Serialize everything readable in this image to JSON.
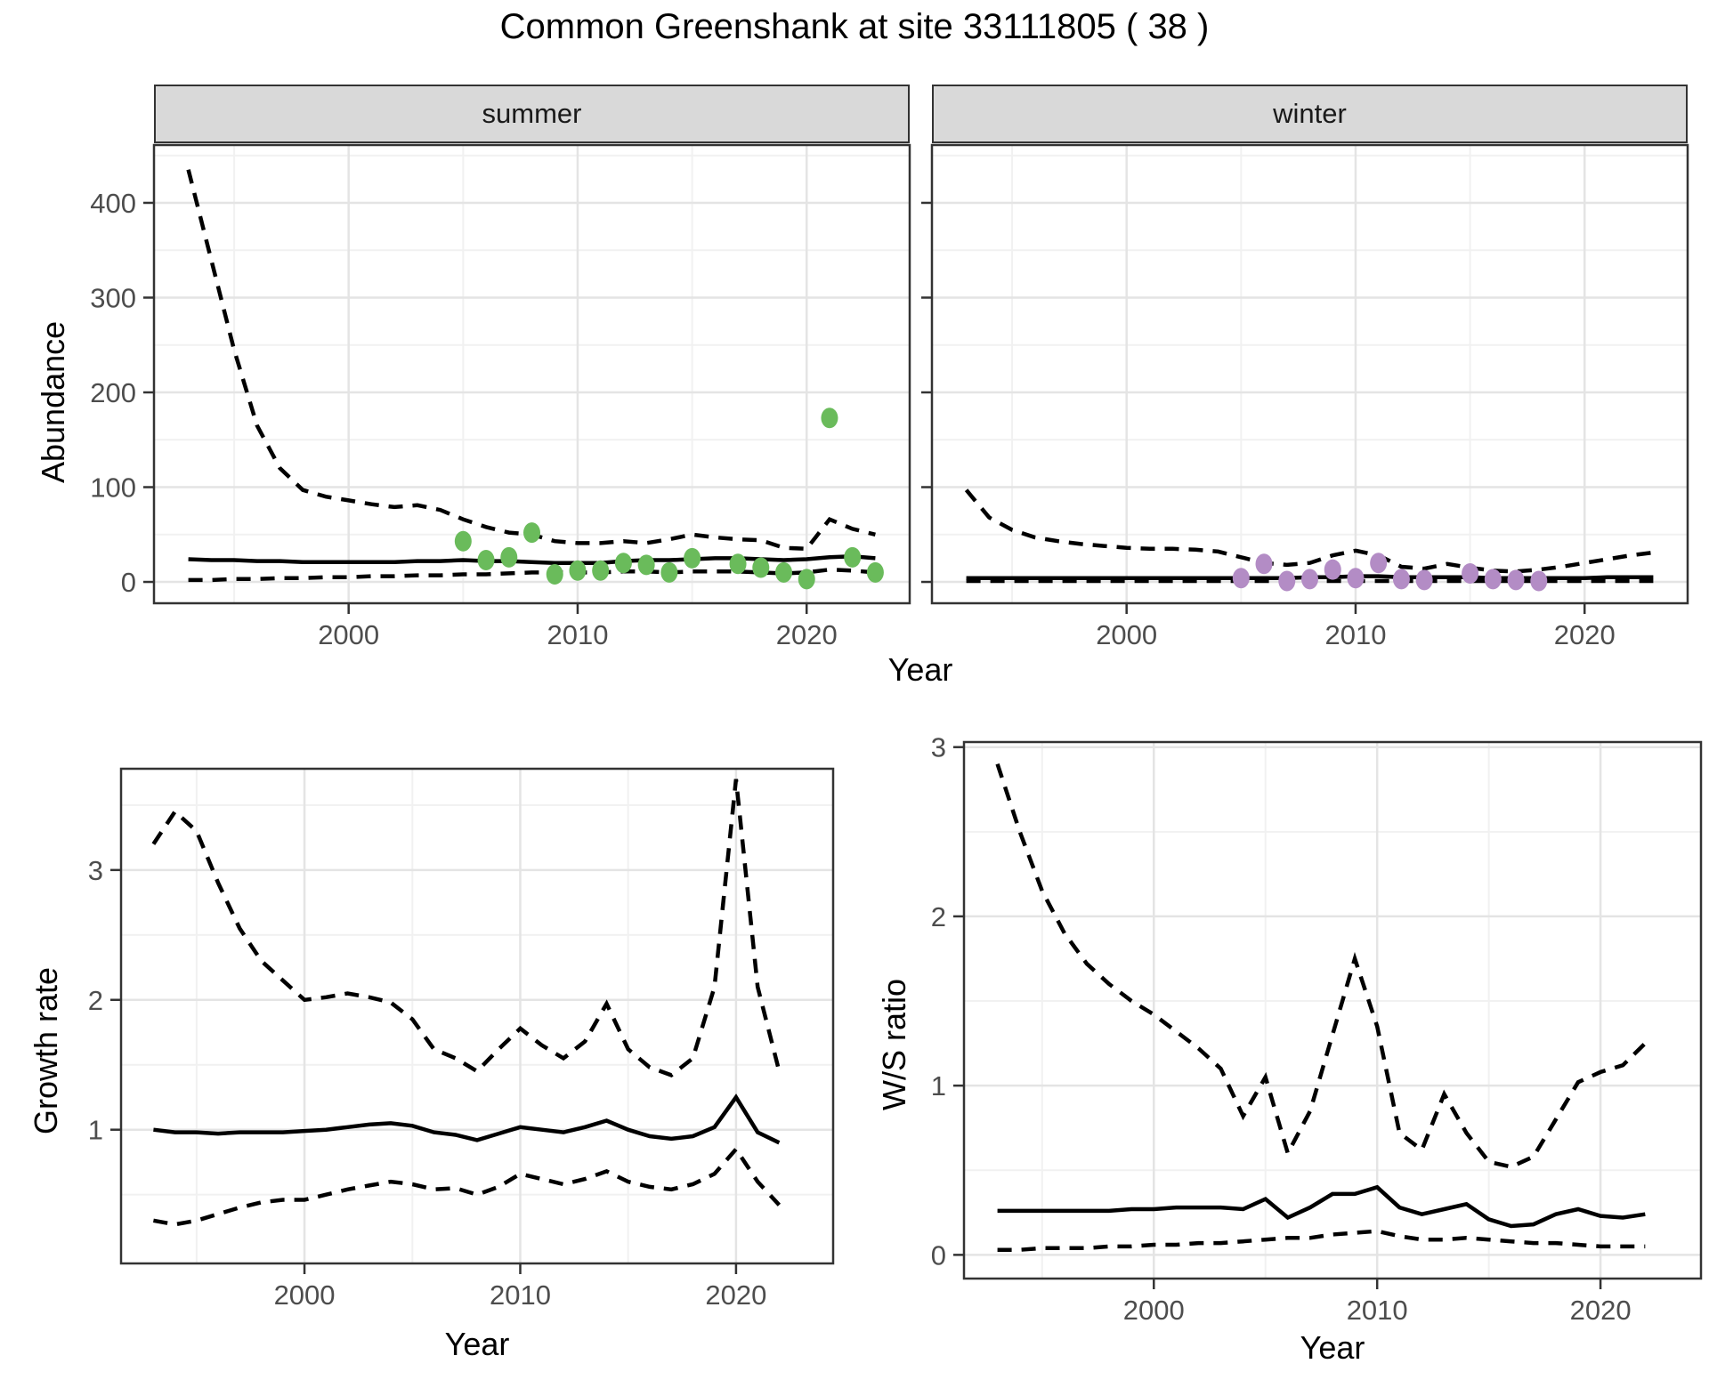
{
  "figure": {
    "title": "Common Greenshank at site 33111805 ( 38 )",
    "background": "#FFFFFF",
    "grid_major_color": "#E4E4E4",
    "grid_minor_color": "#F1F1F1",
    "panel_border_color": "#333333",
    "tick_label_color": "#4D4D4D",
    "strip_fill": "#D9D9D9",
    "line_color": "#000000"
  },
  "chart_data": [
    {
      "type": "line",
      "id": "abundance-summer",
      "facet_label": "summer",
      "ylabel": "Abundance",
      "xlabel": "Year",
      "xlim": [
        1991.5,
        2024.5
      ],
      "ylim": [
        -22.5,
        461
      ],
      "xticks": [
        2000,
        2010,
        2020
      ],
      "xticks_minor": [
        1995,
        2005,
        2015
      ],
      "yticks": [
        0,
        100,
        200,
        300,
        400
      ],
      "yticks_minor": [
        50,
        150,
        250,
        350,
        450
      ],
      "show_ylabels": true,
      "point_color": "#6ABB5B",
      "x": [
        1993,
        1994,
        1995,
        1996,
        1997,
        1998,
        1999,
        2000,
        2001,
        2002,
        2003,
        2004,
        2005,
        2006,
        2007,
        2008,
        2009,
        2010,
        2011,
        2012,
        2013,
        2014,
        2015,
        2016,
        2017,
        2018,
        2019,
        2020,
        2021,
        2022,
        2023
      ],
      "series": [
        {
          "name": "median",
          "style": "solid",
          "values": [
            24,
            23,
            23,
            22,
            22,
            21,
            21,
            21,
            21,
            21,
            22,
            22,
            23,
            22,
            22,
            21,
            20,
            20,
            20,
            22,
            23,
            23,
            24,
            25,
            25,
            24,
            23,
            24,
            26,
            27,
            25
          ]
        },
        {
          "name": "upper95",
          "style": "dashed",
          "values": [
            435,
            340,
            245,
            165,
            120,
            97,
            90,
            86,
            82,
            79,
            81,
            76,
            66,
            58,
            52,
            50,
            43,
            41,
            41,
            43,
            41,
            45,
            50,
            47,
            45,
            44,
            36,
            35,
            66,
            56,
            50
          ]
        },
        {
          "name": "lower95",
          "style": "dashed",
          "values": [
            2,
            2,
            3,
            3,
            4,
            4,
            5,
            5,
            6,
            6,
            7,
            7,
            8,
            8,
            9,
            10,
            10,
            10,
            10,
            11,
            11,
            10,
            11,
            11,
            11,
            10,
            9,
            10,
            13,
            12,
            10
          ]
        }
      ],
      "points": [
        [
          2005,
          43
        ],
        [
          2006,
          23
        ],
        [
          2007,
          26
        ],
        [
          2008,
          52
        ],
        [
          2009,
          8
        ],
        [
          2010,
          12
        ],
        [
          2011,
          12
        ],
        [
          2012,
          20
        ],
        [
          2013,
          18
        ],
        [
          2014,
          10
        ],
        [
          2015,
          25
        ],
        [
          2017,
          19
        ],
        [
          2018,
          15
        ],
        [
          2019,
          10
        ],
        [
          2020,
          3
        ],
        [
          2021,
          173
        ],
        [
          2022,
          26
        ],
        [
          2023,
          10
        ]
      ]
    },
    {
      "type": "line",
      "id": "abundance-winter",
      "facet_label": "winter",
      "ylabel": "Abundance",
      "xlabel": "Year",
      "xlim": [
        1991.5,
        2024.5
      ],
      "ylim": [
        -22.5,
        461
      ],
      "xticks": [
        2000,
        2010,
        2020
      ],
      "xticks_minor": [
        1995,
        2005,
        2015
      ],
      "yticks": [
        0,
        100,
        200,
        300,
        400
      ],
      "yticks_minor": [
        50,
        150,
        250,
        350,
        450
      ],
      "show_ylabels": false,
      "point_color": "#B38CC5",
      "x": [
        1993,
        1994,
        1995,
        1996,
        1997,
        1998,
        1999,
        2000,
        2001,
        2002,
        2003,
        2004,
        2005,
        2006,
        2007,
        2008,
        2009,
        2010,
        2011,
        2012,
        2013,
        2014,
        2015,
        2016,
        2017,
        2018,
        2019,
        2020,
        2021,
        2022,
        2023
      ],
      "series": [
        {
          "name": "median",
          "style": "solid",
          "values": [
            4,
            4,
            4,
            4,
            4,
            4,
            4,
            4,
            4,
            4,
            4,
            4,
            4,
            4,
            4,
            5,
            5,
            6,
            6,
            5,
            5,
            5,
            5,
            4,
            4,
            4,
            4,
            4,
            5,
            5,
            5
          ]
        },
        {
          "name": "upper95",
          "style": "dashed",
          "values": [
            97,
            68,
            55,
            47,
            43,
            40,
            38,
            36,
            35,
            35,
            34,
            32,
            26,
            20,
            18,
            20,
            28,
            33,
            28,
            16,
            14,
            19,
            15,
            12,
            11,
            13,
            16,
            20,
            24,
            28,
            31
          ]
        },
        {
          "name": "lower95",
          "style": "dashed",
          "values": [
            1,
            1,
            1,
            1,
            1,
            1,
            1,
            1,
            1,
            1,
            1,
            1,
            1,
            1,
            1,
            1,
            1,
            1,
            1,
            1,
            1,
            1,
            1,
            1,
            1,
            1,
            1,
            1,
            1,
            1,
            1
          ]
        }
      ],
      "points": [
        [
          2005,
          4
        ],
        [
          2006,
          19
        ],
        [
          2007,
          1
        ],
        [
          2008,
          3
        ],
        [
          2009,
          13
        ],
        [
          2010,
          4
        ],
        [
          2011,
          20
        ],
        [
          2012,
          3
        ],
        [
          2013,
          2
        ],
        [
          2015,
          9
        ],
        [
          2016,
          3
        ],
        [
          2017,
          2
        ],
        [
          2018,
          1
        ]
      ]
    },
    {
      "type": "line",
      "id": "growth-rate",
      "facet_label": "",
      "ylabel": "Growth rate",
      "xlabel": "Year",
      "xlim": [
        1991.5,
        2024.5
      ],
      "ylim": [
        -0.03,
        3.78
      ],
      "xticks": [
        2000,
        2010,
        2020
      ],
      "xticks_minor": [
        1995,
        2005,
        2015
      ],
      "yticks": [
        1,
        2,
        3
      ],
      "yticks_minor": [
        0.5,
        1.5,
        2.5,
        3.5
      ],
      "show_ylabels": true,
      "point_color": null,
      "x": [
        1993,
        1994,
        1995,
        1996,
        1997,
        1998,
        1999,
        2000,
        2001,
        2002,
        2003,
        2004,
        2005,
        2006,
        2007,
        2008,
        2009,
        2010,
        2011,
        2012,
        2013,
        2014,
        2015,
        2016,
        2017,
        2018,
        2019,
        2020,
        2021,
        2022
      ],
      "series": [
        {
          "name": "median",
          "style": "solid",
          "values": [
            1.0,
            0.98,
            0.98,
            0.97,
            0.98,
            0.98,
            0.98,
            0.99,
            1.0,
            1.02,
            1.04,
            1.05,
            1.03,
            0.98,
            0.96,
            0.92,
            0.97,
            1.02,
            1.0,
            0.98,
            1.02,
            1.07,
            1.0,
            0.95,
            0.93,
            0.95,
            1.02,
            1.25,
            0.98,
            0.9
          ]
        },
        {
          "name": "upper95",
          "style": "dashed",
          "values": [
            3.2,
            3.45,
            3.3,
            2.9,
            2.55,
            2.3,
            2.15,
            2.0,
            2.02,
            2.05,
            2.02,
            1.98,
            1.85,
            1.62,
            1.55,
            1.45,
            1.62,
            1.78,
            1.65,
            1.55,
            1.68,
            1.97,
            1.62,
            1.48,
            1.42,
            1.55,
            2.1,
            3.7,
            2.1,
            1.45
          ]
        },
        {
          "name": "lower95",
          "style": "dashed",
          "values": [
            0.3,
            0.27,
            0.3,
            0.35,
            0.4,
            0.44,
            0.46,
            0.46,
            0.5,
            0.54,
            0.57,
            0.6,
            0.58,
            0.54,
            0.55,
            0.5,
            0.56,
            0.66,
            0.62,
            0.58,
            0.62,
            0.68,
            0.6,
            0.56,
            0.54,
            0.58,
            0.66,
            0.85,
            0.6,
            0.42
          ]
        }
      ],
      "points": []
    },
    {
      "type": "line",
      "id": "ws-ratio",
      "facet_label": "",
      "ylabel": "W/S ratio",
      "xlabel": "Year",
      "xlim": [
        1991.5,
        2024.5
      ],
      "ylim": [
        -0.14,
        3.03
      ],
      "xticks": [
        2000,
        2010,
        2020
      ],
      "xticks_minor": [
        1995,
        2005,
        2015
      ],
      "yticks": [
        0,
        1,
        2,
        3
      ],
      "yticks_minor": [
        0.5,
        1.5,
        2.5
      ],
      "show_ylabels": true,
      "point_color": null,
      "x": [
        1993,
        1994,
        1995,
        1996,
        1997,
        1998,
        1999,
        2000,
        2001,
        2002,
        2003,
        2004,
        2005,
        2006,
        2007,
        2008,
        2009,
        2010,
        2011,
        2012,
        2013,
        2014,
        2015,
        2016,
        2017,
        2018,
        2019,
        2020,
        2021,
        2022
      ],
      "series": [
        {
          "name": "median",
          "style": "solid",
          "values": [
            0.26,
            0.26,
            0.26,
            0.26,
            0.26,
            0.26,
            0.27,
            0.27,
            0.28,
            0.28,
            0.28,
            0.27,
            0.33,
            0.22,
            0.28,
            0.36,
            0.36,
            0.4,
            0.28,
            0.24,
            0.27,
            0.3,
            0.21,
            0.17,
            0.18,
            0.24,
            0.27,
            0.23,
            0.22,
            0.24
          ]
        },
        {
          "name": "upper95",
          "style": "dashed",
          "values": [
            2.9,
            2.5,
            2.15,
            1.9,
            1.72,
            1.6,
            1.5,
            1.42,
            1.32,
            1.22,
            1.1,
            0.82,
            1.05,
            0.6,
            0.85,
            1.3,
            1.75,
            1.35,
            0.72,
            0.62,
            0.95,
            0.72,
            0.55,
            0.52,
            0.58,
            0.8,
            1.02,
            1.08,
            1.12,
            1.25
          ]
        },
        {
          "name": "lower95",
          "style": "dashed",
          "values": [
            0.03,
            0.03,
            0.04,
            0.04,
            0.04,
            0.05,
            0.05,
            0.06,
            0.06,
            0.07,
            0.07,
            0.08,
            0.09,
            0.1,
            0.1,
            0.12,
            0.13,
            0.14,
            0.11,
            0.09,
            0.09,
            0.1,
            0.09,
            0.08,
            0.07,
            0.07,
            0.06,
            0.05,
            0.05,
            0.05
          ]
        }
      ],
      "points": []
    }
  ]
}
